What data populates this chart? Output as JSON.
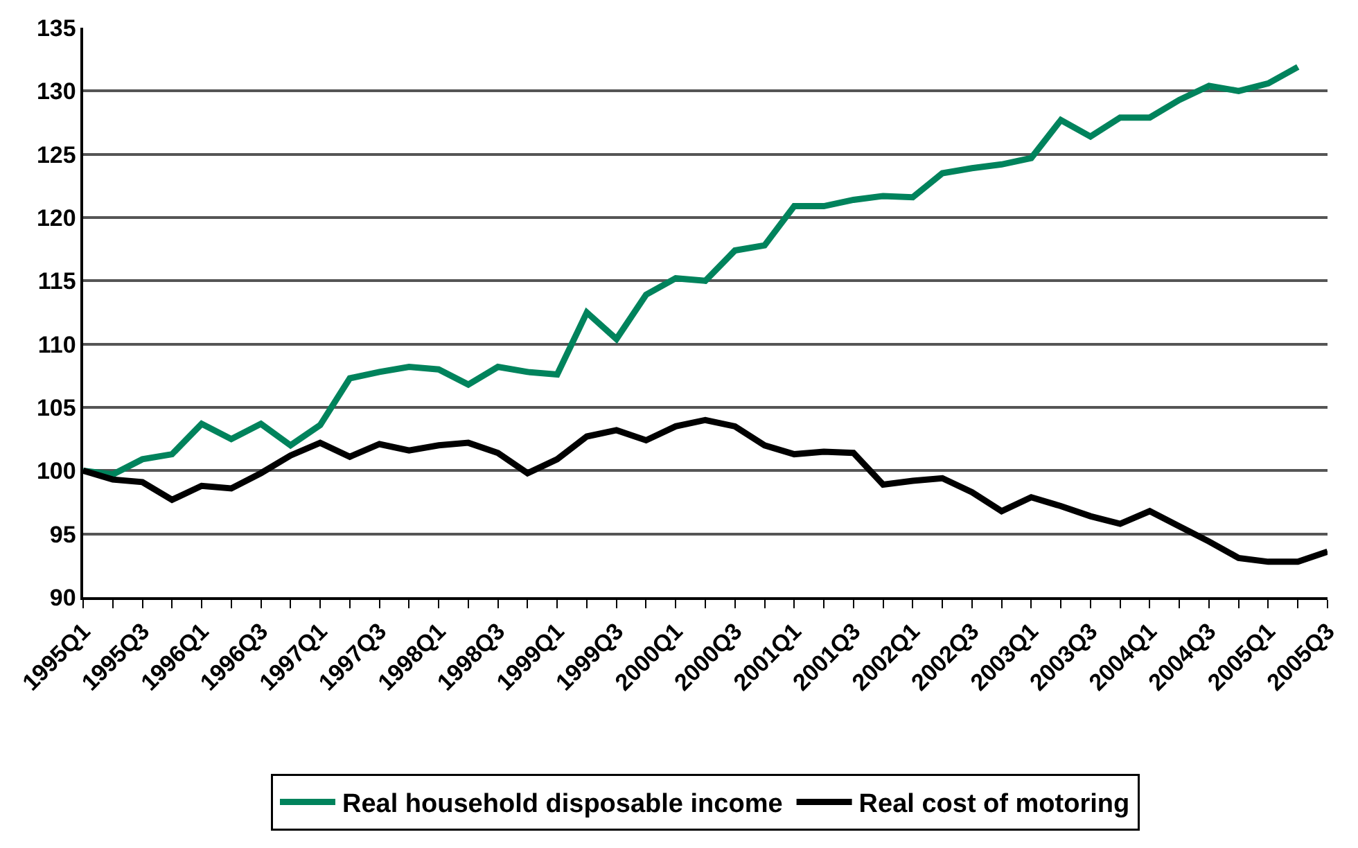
{
  "chart_data": {
    "type": "line",
    "categories": [
      "1995Q1",
      null,
      "1995Q3",
      null,
      "1996Q1",
      null,
      "1996Q3",
      null,
      "1997Q1",
      null,
      "1997Q3",
      null,
      "1998Q1",
      null,
      "1998Q3",
      null,
      "1999Q1",
      null,
      "1999Q3",
      null,
      "2000Q1",
      null,
      "2000Q3",
      null,
      "2001Q1",
      null,
      "2001Q3",
      null,
      "2002Q1",
      null,
      "2002Q3",
      null,
      "2003Q1",
      null,
      "2003Q3",
      null,
      "2004Q1",
      null,
      "2004Q3",
      null,
      "2005Q1",
      null,
      "2005Q3"
    ],
    "series": [
      {
        "name": "Real household disposable income",
        "color": "#00835c",
        "values": [
          100,
          99.7,
          100.9,
          101.3,
          103.7,
          102.5,
          103.7,
          102.0,
          103.6,
          107.3,
          107.8,
          108.2,
          108.0,
          106.8,
          108.2,
          107.8,
          107.6,
          112.5,
          110.4,
          113.9,
          115.2,
          115.0,
          117.4,
          117.8,
          120.9,
          120.9,
          121.4,
          121.7,
          121.6,
          123.5,
          123.9,
          124.2,
          124.7,
          127.7,
          126.4,
          127.9,
          127.9,
          129.3,
          130.4,
          130.0,
          130.6,
          131.9,
          null
        ]
      },
      {
        "name": "Real cost of motoring",
        "color": "#000000",
        "values": [
          100,
          99.3,
          99.1,
          97.7,
          98.8,
          98.6,
          99.8,
          101.2,
          102.2,
          101.1,
          102.1,
          101.6,
          102.0,
          102.2,
          101.4,
          99.8,
          100.9,
          102.7,
          103.2,
          102.4,
          103.5,
          104.0,
          103.5,
          102.0,
          101.3,
          101.5,
          101.4,
          98.9,
          99.2,
          99.4,
          98.3,
          96.8,
          97.9,
          97.2,
          96.4,
          95.8,
          96.8,
          95.6,
          94.4,
          93.1,
          92.8,
          92.8,
          93.6
        ]
      }
    ],
    "ylim": [
      90,
      135
    ],
    "yticks": [
      90,
      95,
      100,
      105,
      110,
      115,
      120,
      125,
      130,
      135
    ],
    "grid": "y",
    "legend": "bottom",
    "marker": "none",
    "line_style": "solid"
  }
}
